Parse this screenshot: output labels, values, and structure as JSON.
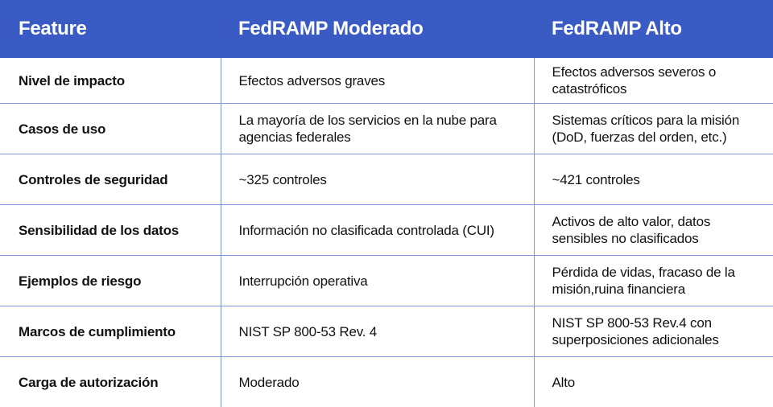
{
  "headers": [
    "Feature",
    "FedRAMP Moderado",
    "FedRAMP Alto"
  ],
  "header_color": "#3a5bc4",
  "border_color": "#7d93dc",
  "rows": [
    [
      "Nivel de impacto",
      "Efectos adversos graves",
      "Efectos adversos severos o catastróficos"
    ],
    [
      "Casos de uso",
      "La mayoría de los servicios en la nube para agencias federales",
      "Sistemas críticos para la misión (DoD, fuerzas del orden, etc.)"
    ],
    [
      "Controles de seguridad",
      "~325 controles",
      "~421 controles"
    ],
    [
      "Sensibilidad de los datos",
      "Información no clasificada controlada (CUI)",
      "Activos de alto valor, datos sensibles no clasificados"
    ],
    [
      "Ejemplos de riesgo",
      "Interrupción operativa",
      "Pérdida de vidas, fracaso de la misión,ruina financiera"
    ],
    [
      "Marcos de cumplimiento",
      "NIST SP 800-53 Rev. 4",
      "NIST SP 800-53 Rev.4 con superposiciones adicionales"
    ],
    [
      "Carga de autorización",
      "Moderado",
      "Alto"
    ]
  ]
}
